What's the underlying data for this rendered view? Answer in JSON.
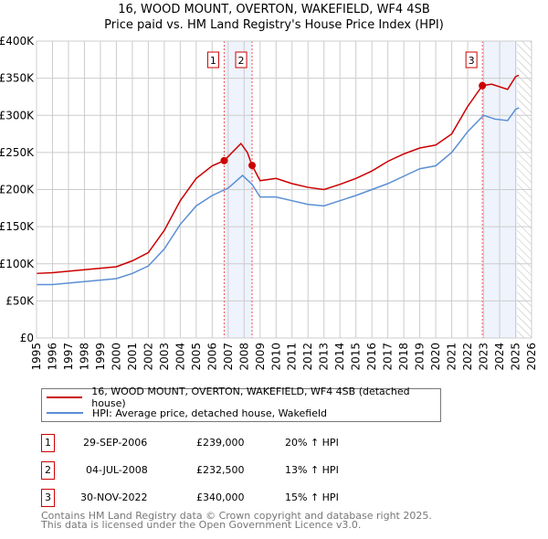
{
  "title": "16, WOOD MOUNT, OVERTON, WAKEFIELD, WF4 4SB",
  "subtitle": "Price paid vs. HM Land Registry's House Price Index (HPI)",
  "chart_data": {
    "type": "line",
    "title": "16, WOOD MOUNT, OVERTON, WAKEFIELD, WF4 4SB",
    "subtitle": "Price paid vs. HM Land Registry's House Price Index (HPI)",
    "xlim": [
      1995,
      2026
    ],
    "ylim": [
      0,
      400000
    ],
    "x_ticks": [
      "1995",
      "1996",
      "1997",
      "1998",
      "1999",
      "2000",
      "2001",
      "2002",
      "2003",
      "2004",
      "2005",
      "2006",
      "2007",
      "2008",
      "2009",
      "2010",
      "2011",
      "2012",
      "2013",
      "2014",
      "2015",
      "2016",
      "2017",
      "2018",
      "2019",
      "2020",
      "2021",
      "2022",
      "2023",
      "2024",
      "2025",
      "2026"
    ],
    "y_ticks": [
      {
        "v": 0,
        "label": "£0"
      },
      {
        "v": 50000,
        "label": "£50K"
      },
      {
        "v": 100000,
        "label": "£100K"
      },
      {
        "v": 150000,
        "label": "£150K"
      },
      {
        "v": 200000,
        "label": "£200K"
      },
      {
        "v": 250000,
        "label": "£250K"
      },
      {
        "v": 300000,
        "label": "£300K"
      },
      {
        "v": 350000,
        "label": "£350K"
      },
      {
        "v": 400000,
        "label": "£400K"
      }
    ],
    "grid": true,
    "series": [
      {
        "name": "16, WOOD MOUNT, OVERTON, WAKEFIELD, WF4 4SB (detached house)",
        "color": "#cc0000",
        "x": [
          1995,
          1996,
          1997,
          1998,
          1999,
          2000,
          2001,
          2002,
          2003,
          2004,
          2005,
          2006,
          2006.75,
          2007.8,
          2008.2,
          2008.5,
          2009,
          2010,
          2011,
          2012,
          2013,
          2014,
          2015,
          2016,
          2017,
          2018,
          2019,
          2020,
          2021,
          2022,
          2022.92,
          2023.5,
          2024.5,
          2025,
          2025.2
        ],
        "y": [
          87000,
          88000,
          90000,
          92000,
          94000,
          96000,
          104000,
          115000,
          145000,
          185000,
          215000,
          232000,
          239000,
          262000,
          250000,
          232500,
          212000,
          215000,
          208000,
          203000,
          200000,
          207000,
          215000,
          225000,
          238000,
          248000,
          256000,
          260000,
          275000,
          312000,
          340000,
          342000,
          335000,
          352000,
          354000
        ]
      },
      {
        "name": "HPI: Average price, detached house, Wakefield",
        "color": "#5b8fd4",
        "x": [
          1995,
          1996,
          1997,
          1998,
          1999,
          2000,
          2001,
          2002,
          2003,
          2004,
          2005,
          2006,
          2007,
          2007.9,
          2008.5,
          2009,
          2010,
          2011,
          2012,
          2013,
          2014,
          2015,
          2016,
          2017,
          2018,
          2019,
          2020,
          2021,
          2022,
          2023,
          2023.7,
          2024.5,
          2025,
          2025.2
        ],
        "y": [
          72000,
          72000,
          74000,
          76000,
          78000,
          80000,
          87000,
          97000,
          120000,
          153000,
          178000,
          192000,
          202000,
          219000,
          207000,
          190000,
          190000,
          185000,
          180000,
          178000,
          185000,
          192000,
          200000,
          208000,
          218000,
          228000,
          232000,
          250000,
          278000,
          300000,
          295000,
          293000,
          308000,
          310000
        ]
      }
    ],
    "sales": [
      {
        "id": "1",
        "x": 2006.75,
        "y": 239000,
        "date": "29-SEP-2006",
        "price": "£239,000",
        "hpi": "20% ↑ HPI"
      },
      {
        "id": "2",
        "x": 2008.5,
        "y": 232500,
        "date": "04-JUL-2008",
        "price": "£232,500",
        "hpi": "13% ↑ HPI"
      },
      {
        "id": "3",
        "x": 2022.92,
        "y": 340000,
        "date": "30-NOV-2022",
        "price": "£340,000",
        "hpi": "15% ↑ HPI"
      }
    ],
    "shaded_ranges": [
      [
        2006.75,
        2008.5
      ],
      [
        2022.92,
        2025.1
      ]
    ],
    "forecast_from": 2025.1,
    "legend_position": "below"
  },
  "footer": [
    "Contains HM Land Registry data © Crown copyright and database right 2025.",
    "This data is licensed under the Open Government Licence v3.0."
  ]
}
